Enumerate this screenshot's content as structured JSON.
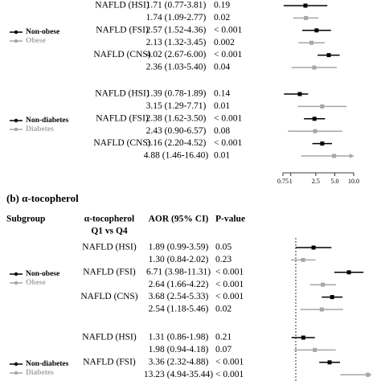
{
  "chart_data": [
    {
      "type": "forest",
      "log_scale": true,
      "xlim": [
        0.75,
        10
      ],
      "xticks": [
        0.75,
        1,
        2.5,
        {
          "value": 5,
          "label": "5.0"
        },
        {
          "value": 10,
          "label": "10.0"
        }
      ],
      "groups": [
        {
          "legend": [
            {
              "name": "Non-obese",
              "color": "#000000"
            },
            {
              "name": "Obese",
              "color": "#a6a6a6"
            }
          ],
          "rows": [
            {
              "exposure": "NAFLD (HSI)",
              "estimate": 1.71,
              "lower": 0.77,
              "upper": 3.81,
              "aor_ci": "1.71 (0.77-3.81)",
              "p_value": "0.19",
              "color": "#000000"
            },
            {
              "estimate": 1.74,
              "lower": 1.09,
              "upper": 2.77,
              "aor_ci": "1.74 (1.09-2.77)",
              "p_value": "0.02",
              "color": "#a6a6a6"
            },
            {
              "exposure": "NAFLD (FSI)",
              "estimate": 2.57,
              "lower": 1.52,
              "upper": 4.36,
              "aor_ci": "2.57 (1.52-4.36)",
              "p_value": "< 0.001",
              "color": "#000000"
            },
            {
              "estimate": 2.13,
              "lower": 1.32,
              "upper": 3.45,
              "aor_ci": "2.13 (1.32-3.45)",
              "p_value": "0.002",
              "color": "#a6a6a6"
            },
            {
              "exposure": "NAFLD (CNS)",
              "estimate": 4.02,
              "lower": 2.67,
              "upper": 6.0,
              "aor_ci": "4.02 (2.67-6.00)",
              "p_value": "< 0.001",
              "color": "#000000"
            },
            {
              "estimate": 2.36,
              "lower": 1.03,
              "upper": 5.4,
              "aor_ci": "2.36 (1.03-5.40)",
              "p_value": "0.04",
              "color": "#a6a6a6"
            }
          ]
        },
        {
          "legend": [
            {
              "name": "Non-diabetes",
              "color": "#000000"
            },
            {
              "name": "Diabetes",
              "color": "#a6a6a6"
            }
          ],
          "rows": [
            {
              "exposure": "NAFLD (HSI)",
              "estimate": 1.39,
              "lower": 0.78,
              "upper": 1.89,
              "aor_ci": "1.39 (0.78-1.89)",
              "p_value": "0.14",
              "color": "#000000"
            },
            {
              "estimate": 3.15,
              "lower": 1.29,
              "upper": 7.71,
              "aor_ci": "3.15 (1.29-7.71)",
              "p_value": "0.01",
              "color": "#a6a6a6"
            },
            {
              "exposure": "NAFLD (FSI)",
              "estimate": 2.38,
              "lower": 1.62,
              "upper": 3.5,
              "aor_ci": "2.38 (1.62-3.50)",
              "p_value": "< 0.001",
              "color": "#000000"
            },
            {
              "estimate": 2.43,
              "lower": 0.9,
              "upper": 6.57,
              "aor_ci": "2.43 (0.90-6.57)",
              "p_value": "0.08",
              "color": "#a6a6a6"
            },
            {
              "exposure": "NAFLD (CNS)",
              "estimate": 3.16,
              "lower": 2.2,
              "upper": 4.52,
              "aor_ci": "3.16 (2.20-4.52)",
              "p_value": "< 0.001",
              "color": "#000000"
            },
            {
              "estimate": 4.88,
              "lower": 1.46,
              "upper": 16.4,
              "aor_ci": "4.88 (1.46-16.40)",
              "p_value": "0.01",
              "color": "#a6a6a6"
            }
          ]
        }
      ]
    },
    {
      "type": "forest",
      "title": "(b) α-tocopherol",
      "log_scale": true,
      "xlim": [
        0.75,
        15
      ],
      "ref_line": 1,
      "headers": {
        "subgroup": "Subgroup",
        "exposure": "α-tocopherol",
        "exposure_sub": "Q1 vs Q4",
        "aor": "AOR (95% CI)",
        "p": "P-value"
      },
      "groups": [
        {
          "legend": [
            {
              "name": "Non-obese",
              "color": "#000000"
            },
            {
              "name": "Obese",
              "color": "#a6a6a6"
            }
          ],
          "rows": [
            {
              "exposure": "NAFLD (HSI)",
              "estimate": 1.89,
              "lower": 0.99,
              "upper": 3.59,
              "aor_ci": "1.89 (0.99-3.59)",
              "p_value": "0.05",
              "color": "#000000"
            },
            {
              "estimate": 1.3,
              "lower": 0.84,
              "upper": 2.02,
              "aor_ci": "1.30 (0.84-2.02)",
              "p_value": "0.23",
              "color": "#a6a6a6"
            },
            {
              "exposure": "NAFLD (FSI)",
              "estimate": 6.71,
              "lower": 3.98,
              "upper": 11.31,
              "aor_ci": "6.71 (3.98-11.31)",
              "p_value": "< 0.001",
              "color": "#000000"
            },
            {
              "estimate": 2.64,
              "lower": 1.66,
              "upper": 4.22,
              "aor_ci": "2.64 (1.66-4.22)",
              "p_value": "< 0.001",
              "color": "#a6a6a6"
            },
            {
              "exposure": "NAFLD (CNS)",
              "estimate": 3.68,
              "lower": 2.54,
              "upper": 5.33,
              "aor_ci": "3.68 (2.54-5.33)",
              "p_value": "< 0.001",
              "color": "#000000"
            },
            {
              "estimate": 2.54,
              "lower": 1.18,
              "upper": 5.46,
              "aor_ci": "2.54 (1.18-5.46)",
              "p_value": "0.02",
              "color": "#a6a6a6"
            }
          ]
        },
        {
          "legend": [
            {
              "name": "Non-diabetes",
              "color": "#000000"
            },
            {
              "name": "Diabetes",
              "color": "#a6a6a6"
            }
          ],
          "rows": [
            {
              "exposure": "NAFLD (HSI)",
              "estimate": 1.31,
              "lower": 0.86,
              "upper": 1.98,
              "aor_ci": "1.31 (0.86-1.98)",
              "p_value": "0.21",
              "color": "#000000"
            },
            {
              "estimate": 1.98,
              "lower": 0.94,
              "upper": 4.18,
              "aor_ci": "1.98 (0.94-4.18)",
              "p_value": "0.07",
              "color": "#a6a6a6"
            },
            {
              "exposure": "NAFLD (FSI)",
              "estimate": 3.36,
              "lower": 2.32,
              "upper": 4.88,
              "aor_ci": "3.36 (2.32-4.88)",
              "p_value": "< 0.001",
              "color": "#000000"
            },
            {
              "estimate": 13.23,
              "lower": 4.94,
              "upper": 35.44,
              "aor_ci": "13.23 (4.94-35.44)",
              "p_value": "< 0.001",
              "color": "#a6a6a6"
            }
          ]
        }
      ]
    }
  ]
}
